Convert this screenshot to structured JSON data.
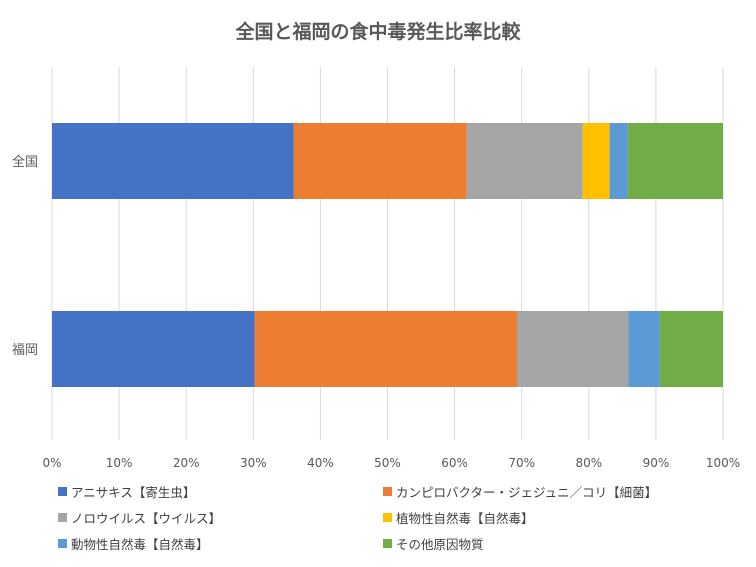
{
  "chart_data": {
    "type": "bar",
    "orientation": "horizontal",
    "stacked": "percent",
    "title": "全国と福岡の食中毒発生比率比較",
    "categories": [
      "全国",
      "福岡"
    ],
    "series": [
      {
        "name": "アニサキス【寄生虫】",
        "color": "#4472C4",
        "values": [
          36,
          30.2
        ]
      },
      {
        "name": "カンピロバクター・ジェジュニ／コリ【細菌】",
        "color": "#ED7D31",
        "values": [
          25.8,
          39.1
        ]
      },
      {
        "name": "ノロウイルス【ウイルス】",
        "color": "#A5A5A5",
        "values": [
          17.3,
          16.6
        ]
      },
      {
        "name": "植物性自然毒【自然毒】",
        "color": "#FFC000",
        "values": [
          4.0,
          0
        ]
      },
      {
        "name": "動物性自然毒【自然毒】",
        "color": "#5B9BD5",
        "values": [
          2.7,
          4.7
        ]
      },
      {
        "name": "その他原因物質",
        "color": "#70AD47",
        "values": [
          14.2,
          9.4
        ]
      }
    ],
    "xaxis": {
      "ticks": [
        "0%",
        "10%",
        "20%",
        "30%",
        "40%",
        "50%",
        "60%",
        "70%",
        "80%",
        "90%",
        "100%"
      ],
      "range": [
        0,
        100
      ]
    },
    "grid": true,
    "legend_position": "bottom"
  }
}
